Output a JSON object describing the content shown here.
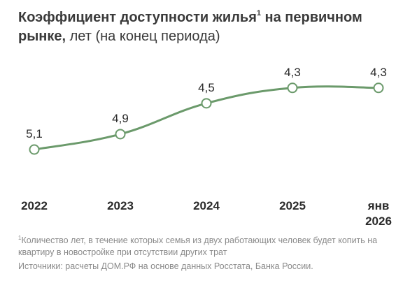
{
  "title": {
    "bold": "Коэффициент доступности жилья",
    "sup": "1",
    "bold_tail": " на первичном",
    "line2_bold": "рынке,",
    "line2_light": " лет (на конец периода)"
  },
  "footnote": {
    "marker": "1",
    "text": "Количество лет, в течение которых семья из двух работающих человек будет копить на квартиру в новостройке при отсутствии других трат"
  },
  "sources": "Источники: расчеты ДОМ.РФ на основе данных Росстата, Банка России.",
  "colors": {
    "line": "#6b9a6b",
    "marker_fill": "#ffffff"
  },
  "chart_data": {
    "type": "line",
    "categories": [
      "2022",
      "2023",
      "2024",
      "2025",
      "янв 2026"
    ],
    "category_lines": [
      [
        "2022"
      ],
      [
        "2023"
      ],
      [
        "2024"
      ],
      [
        "2025"
      ],
      [
        "янв",
        "2026"
      ]
    ],
    "values": [
      5.1,
      4.9,
      4.5,
      4.3,
      4.3
    ],
    "value_labels": [
      "5,1",
      "4,9",
      "4,5",
      "4,3",
      "4,3"
    ],
    "grid": false,
    "legend": "none"
  }
}
